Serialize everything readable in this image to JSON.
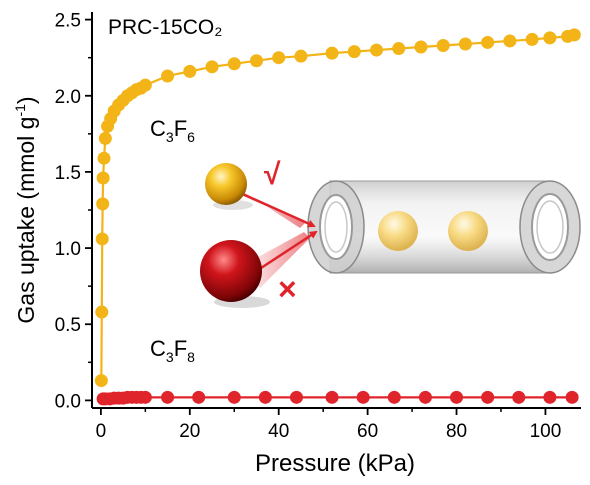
{
  "chart_data": {
    "type": "line",
    "title": "PRC-15CO₂",
    "xlabel": "Pressure (kPa)",
    "ylabel_main": "Gas uptake (mmol g",
    "ylabel_sup": "-1",
    "ylabel_close": ")",
    "xlim": [
      -2,
      108
    ],
    "ylim": [
      -0.05,
      2.55
    ],
    "xticks": [
      0,
      20,
      40,
      60,
      80,
      100
    ],
    "yticks": [
      0.0,
      0.5,
      1.0,
      1.5,
      2.0,
      2.5
    ],
    "xtick_labels": [
      "0",
      "20",
      "40",
      "60",
      "80",
      "100"
    ],
    "ytick_labels": [
      "0.0",
      "0.5",
      "1.0",
      "1.5",
      "2.0",
      "2.5"
    ],
    "series": [
      {
        "name_base": "C",
        "name_sub1": "3",
        "name_mid": "F",
        "name_sub2": "6",
        "color": "#F2B416",
        "x": [
          0.1,
          0.2,
          0.3,
          0.4,
          0.5,
          0.7,
          1.0,
          1.5,
          2.2,
          3.0,
          4.0,
          5.0,
          6.0,
          7.0,
          8.0,
          9.0,
          10.0,
          15,
          20,
          25,
          30,
          35,
          40,
          45,
          52,
          57,
          62,
          67,
          72,
          77,
          82,
          87,
          92,
          97,
          101,
          105,
          106.5
        ],
        "y": [
          0.13,
          0.58,
          1.06,
          1.29,
          1.46,
          1.59,
          1.72,
          1.8,
          1.85,
          1.9,
          1.94,
          1.97,
          2.0,
          2.02,
          2.04,
          2.05,
          2.07,
          2.13,
          2.16,
          2.19,
          2.21,
          2.23,
          2.25,
          2.26,
          2.28,
          2.29,
          2.3,
          2.31,
          2.32,
          2.33,
          2.34,
          2.35,
          2.36,
          2.37,
          2.38,
          2.39,
          2.4
        ]
      },
      {
        "name_base": "C",
        "name_sub1": "3",
        "name_mid": "F",
        "name_sub2": "8",
        "color": "#E0242B",
        "x": [
          0.5,
          1,
          2,
          3,
          4,
          5,
          6,
          7,
          8,
          9,
          10,
          15,
          22,
          30,
          37,
          44,
          52,
          59,
          66,
          73,
          80,
          87,
          94,
          101,
          106
        ],
        "y": [
          0.01,
          0.01,
          0.01,
          0.015,
          0.015,
          0.015,
          0.02,
          0.02,
          0.02,
          0.02,
          0.02,
          0.02,
          0.02,
          0.02,
          0.02,
          0.02,
          0.02,
          0.02,
          0.02,
          0.02,
          0.02,
          0.02,
          0.02,
          0.02,
          0.02
        ]
      }
    ],
    "legend_placement": "labels-on-curves",
    "grid": false,
    "annotations": {
      "check_mark": "√",
      "cross_mark": "×"
    }
  }
}
